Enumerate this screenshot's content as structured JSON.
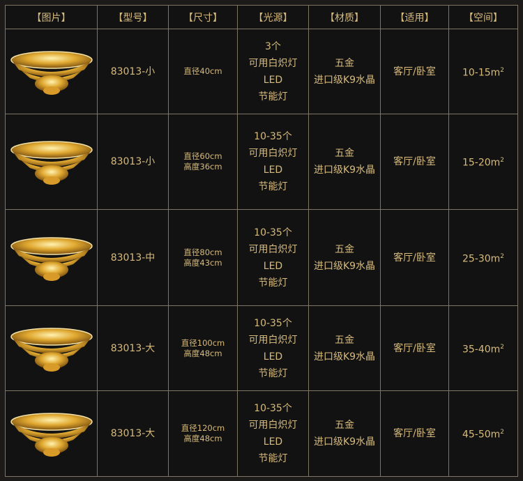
{
  "headers": [
    "【图片】",
    "【型号】",
    "【尺寸】",
    "【光源】",
    "【材质】",
    "【适用】",
    "【空间】"
  ],
  "colors": {
    "text": "#d7bb7c",
    "background": "#121212",
    "border": "#7e7566"
  },
  "rows": [
    {
      "image": "chandelier-image",
      "model": "83013-小",
      "size": [
        "直径40cm"
      ],
      "light": [
        "3个",
        "可用白炽灯",
        "LED",
        "节能灯"
      ],
      "material": [
        "五金",
        "进口级K9水晶"
      ],
      "usage": "客厅/卧室",
      "space": "10-15m",
      "space_sup": "2"
    },
    {
      "image": "chandelier-image",
      "model": "83013-小",
      "size": [
        "直径60cm",
        "高度36cm"
      ],
      "light": [
        "10-35个",
        "可用白炽灯",
        "LED",
        "节能灯"
      ],
      "material": [
        "五金",
        "进口级K9水晶"
      ],
      "usage": "客厅/卧室",
      "space": "15-20m",
      "space_sup": "2"
    },
    {
      "image": "chandelier-image",
      "model": "83013-中",
      "size": [
        "直径80cm",
        "高度43cm"
      ],
      "light": [
        "10-35个",
        "可用白炽灯",
        "LED",
        "节能灯"
      ],
      "material": [
        "五金",
        "进口级K9水晶"
      ],
      "usage": "客厅/卧室",
      "space": "25-30m",
      "space_sup": "2"
    },
    {
      "image": "chandelier-image",
      "model": "83013-大",
      "size": [
        "直径100cm",
        "高度48cm"
      ],
      "light": [
        "10-35个",
        "可用白炽灯",
        "LED",
        "节能灯"
      ],
      "material": [
        "五金",
        "进口级K9水晶"
      ],
      "usage": "客厅/卧室",
      "space": "35-40m",
      "space_sup": "2"
    },
    {
      "image": "chandelier-image",
      "model": "83013-大",
      "size": [
        "直径120cm",
        "高度48cm"
      ],
      "light": [
        "10-35个",
        "可用白炽灯",
        "LED",
        "节能灯"
      ],
      "material": [
        "五金",
        "进口级K9水晶"
      ],
      "usage": "客厅/卧室",
      "space": "45-50m",
      "space_sup": "2"
    }
  ]
}
